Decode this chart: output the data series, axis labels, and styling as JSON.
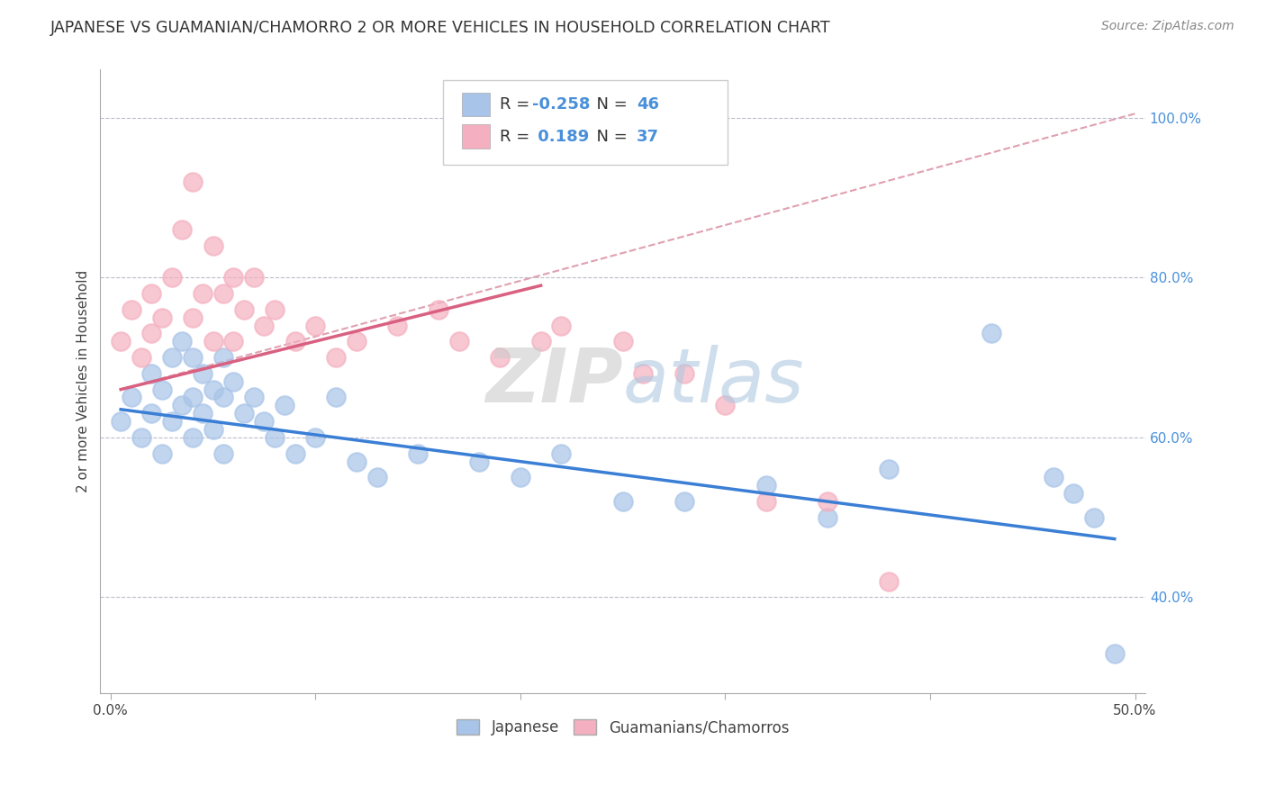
{
  "title": "JAPANESE VS GUAMANIAN/CHAMORRO 2 OR MORE VEHICLES IN HOUSEHOLD CORRELATION CHART",
  "source": "Source: ZipAtlas.com",
  "ylabel": "2 or more Vehicles in Household",
  "xlim": [
    -0.005,
    0.505
  ],
  "ylim": [
    0.28,
    1.06
  ],
  "xticks": [
    0.0,
    0.1,
    0.2,
    0.3,
    0.4,
    0.5
  ],
  "xticklabels": [
    "0.0%",
    "",
    "",
    "",
    "",
    "50.0%"
  ],
  "yticks_right": [
    0.4,
    0.6,
    0.8,
    1.0
  ],
  "ytick_right_labels": [
    "40.0%",
    "60.0%",
    "80.0%",
    "100.0%"
  ],
  "legend_R_blue": "-0.258",
  "legend_N_blue": "46",
  "legend_R_pink": "0.189",
  "legend_N_pink": "37",
  "legend_label_blue": "Japanese",
  "legend_label_pink": "Guamanians/Chamorros",
  "blue_color": "#a8c4e8",
  "pink_color": "#f4b0c0",
  "blue_line_color": "#3a7fd5",
  "pink_line_color": "#d96080",
  "dash_line_color": "#e0a0b0",
  "blue_scatter_x": [
    0.005,
    0.01,
    0.015,
    0.02,
    0.02,
    0.025,
    0.025,
    0.03,
    0.03,
    0.035,
    0.035,
    0.04,
    0.04,
    0.04,
    0.045,
    0.045,
    0.05,
    0.05,
    0.055,
    0.055,
    0.055,
    0.06,
    0.065,
    0.07,
    0.075,
    0.08,
    0.085,
    0.09,
    0.1,
    0.11,
    0.12,
    0.13,
    0.15,
    0.18,
    0.2,
    0.22,
    0.25,
    0.28,
    0.32,
    0.35,
    0.38,
    0.43,
    0.46,
    0.47,
    0.48,
    0.49
  ],
  "blue_scatter_y": [
    0.62,
    0.65,
    0.6,
    0.68,
    0.63,
    0.66,
    0.58,
    0.7,
    0.62,
    0.72,
    0.64,
    0.7,
    0.65,
    0.6,
    0.68,
    0.63,
    0.66,
    0.61,
    0.7,
    0.65,
    0.58,
    0.67,
    0.63,
    0.65,
    0.62,
    0.6,
    0.64,
    0.58,
    0.6,
    0.65,
    0.57,
    0.55,
    0.58,
    0.57,
    0.55,
    0.58,
    0.52,
    0.52,
    0.54,
    0.5,
    0.56,
    0.73,
    0.55,
    0.53,
    0.5,
    0.33
  ],
  "pink_scatter_x": [
    0.005,
    0.01,
    0.015,
    0.02,
    0.02,
    0.025,
    0.03,
    0.035,
    0.04,
    0.04,
    0.045,
    0.05,
    0.05,
    0.055,
    0.06,
    0.06,
    0.065,
    0.07,
    0.075,
    0.08,
    0.09,
    0.1,
    0.11,
    0.12,
    0.14,
    0.16,
    0.17,
    0.19,
    0.21,
    0.22,
    0.25,
    0.26,
    0.28,
    0.3,
    0.32,
    0.35,
    0.38
  ],
  "pink_scatter_y": [
    0.72,
    0.76,
    0.7,
    0.78,
    0.73,
    0.75,
    0.8,
    0.86,
    0.92,
    0.75,
    0.78,
    0.84,
    0.72,
    0.78,
    0.8,
    0.72,
    0.76,
    0.8,
    0.74,
    0.76,
    0.72,
    0.74,
    0.7,
    0.72,
    0.74,
    0.76,
    0.72,
    0.7,
    0.72,
    0.74,
    0.72,
    0.68,
    0.68,
    0.64,
    0.52,
    0.52,
    0.42
  ],
  "blue_trend_x": [
    0.005,
    0.49
  ],
  "blue_trend_y": [
    0.635,
    0.473
  ],
  "pink_trend_x": [
    0.005,
    0.21
  ],
  "pink_trend_y": [
    0.66,
    0.79
  ],
  "dash_line_x": [
    0.005,
    0.5
  ],
  "dash_line_y": [
    0.66,
    1.005
  ]
}
